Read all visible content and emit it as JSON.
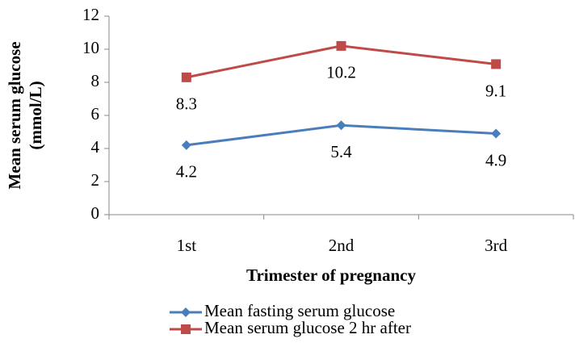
{
  "chart_data": {
    "type": "line",
    "ylabel": [
      "Mean serum glucose",
      "(mmol/L)"
    ],
    "xlabel": "Trimester of pregnancy",
    "categories": [
      "1st",
      "2nd",
      "3rd"
    ],
    "series": [
      {
        "name": "Mean fasting serum glucose",
        "color": "#4a7ebb",
        "marker": "diamond",
        "values": [
          4.2,
          5.4,
          4.9
        ]
      },
      {
        "name": "Mean serum glucose 2 hr after",
        "color": "#be4b48",
        "marker": "square",
        "values": [
          8.3,
          10.2,
          9.1
        ]
      }
    ],
    "ylim": [
      0,
      12
    ],
    "yticks": [
      0,
      2,
      4,
      6,
      8,
      10,
      12
    ],
    "grid": false,
    "legend": "bottom"
  }
}
